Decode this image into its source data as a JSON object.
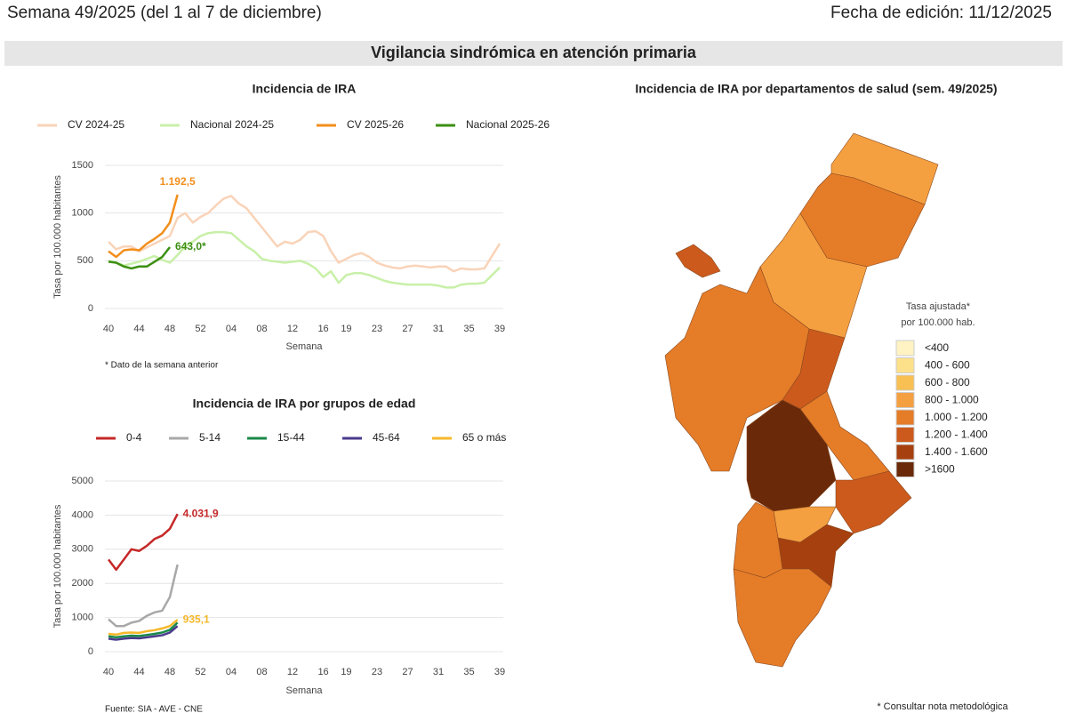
{
  "header": {
    "week": "Semana 49/2025 (del 1 al 7 de diciembre)",
    "edit_date": "Fecha de edición: 11/12/2025",
    "section_title": "Vigilancia sindrómica en atención primaria"
  },
  "chart_data": [
    {
      "type": "line",
      "title": "Incidencia de IRA",
      "x_label": "Semana",
      "y_label": "Tasa por 100.000 habitantes",
      "note": "* Dato de la semana anterior",
      "categories": [
        "40",
        null,
        null,
        null,
        "44",
        null,
        null,
        null,
        "48",
        null,
        null,
        null,
        "52",
        null,
        null,
        null,
        "04",
        null,
        null,
        null,
        "08",
        null,
        null,
        null,
        "12",
        null,
        null,
        null,
        "16",
        null,
        null,
        "19",
        null,
        null,
        null,
        "23",
        null,
        null,
        null,
        "27",
        null,
        null,
        null,
        "31",
        null,
        null,
        null,
        "35",
        null,
        null,
        null,
        "39"
      ],
      "ylim": [
        0,
        1500
      ],
      "yticks": [
        0,
        500,
        1000,
        1500
      ],
      "grid": true,
      "series": [
        {
          "name": "CV 2024-25",
          "color": "#f9d3b8",
          "values": [
            700,
            620,
            650,
            650,
            600,
            640,
            680,
            720,
            760,
            950,
            1000,
            900,
            960,
            1000,
            1080,
            1150,
            1180,
            1100,
            1050,
            950,
            850,
            750,
            650,
            700,
            680,
            720,
            800,
            810,
            760,
            600,
            480,
            520,
            560,
            580,
            540,
            480,
            450,
            430,
            420,
            440,
            450,
            440,
            430,
            440,
            440,
            390,
            420,
            410,
            410,
            420,
            550,
            680
          ]
        },
        {
          "name": "Nacional 2024-25",
          "color": "#c8f0a8",
          "values": [
            500,
            480,
            450,
            470,
            490,
            520,
            550,
            510,
            480,
            560,
            650,
            700,
            760,
            790,
            800,
            800,
            790,
            720,
            650,
            600,
            520,
            500,
            490,
            480,
            490,
            500,
            470,
            420,
            330,
            390,
            270,
            350,
            370,
            370,
            350,
            320,
            290,
            270,
            260,
            250,
            250,
            250,
            250,
            240,
            220,
            220,
            250,
            260,
            260,
            270,
            350,
            430
          ]
        },
        {
          "name": "CV 2025-26",
          "color": "#f28e1c",
          "values": [
            600,
            540,
            610,
            620,
            610,
            680,
            730,
            790,
            900,
            1192.5,
            null,
            null,
            null,
            null,
            null,
            null,
            null,
            null,
            null,
            null,
            null,
            null,
            null,
            null,
            null,
            null,
            null,
            null,
            null,
            null,
            null,
            null,
            null,
            null,
            null,
            null,
            null,
            null,
            null,
            null,
            null,
            null,
            null,
            null,
            null,
            null,
            null,
            null,
            null,
            null,
            null,
            null
          ],
          "value_labels": [
            null,
            null,
            null,
            null,
            null,
            null,
            null,
            null,
            null,
            "1.192,5"
          ]
        },
        {
          "name": "Nacional 2025-26",
          "color": "#3c8f12",
          "values": [
            490,
            480,
            440,
            420,
            440,
            440,
            490,
            540,
            643.0,
            null,
            null,
            null,
            null,
            null,
            null,
            null,
            null,
            null,
            null,
            null,
            null,
            null,
            null,
            null,
            null,
            null,
            null,
            null,
            null,
            null,
            null,
            null,
            null,
            null,
            null,
            null,
            null,
            null,
            null,
            null,
            null,
            null,
            null,
            null,
            null,
            null,
            null,
            null,
            null,
            null,
            null,
            null
          ],
          "value_labels": [
            null,
            null,
            null,
            null,
            null,
            null,
            null,
            null,
            "643,0*"
          ]
        }
      ]
    },
    {
      "type": "line",
      "title": "Incidencia de IRA por grupos de edad",
      "x_label": "Semana",
      "y_label": "Tasa por 100.000 habitantes",
      "note": "Fuente: SIA - AVE - CNE",
      "categories": [
        "40",
        null,
        null,
        null,
        "44",
        null,
        null,
        null,
        "48",
        null,
        null,
        null,
        "52",
        null,
        null,
        null,
        "04",
        null,
        null,
        null,
        "08",
        null,
        null,
        null,
        "12",
        null,
        null,
        null,
        "16",
        null,
        null,
        "19",
        null,
        null,
        null,
        "23",
        null,
        null,
        null,
        "27",
        null,
        null,
        null,
        "31",
        null,
        null,
        null,
        "35",
        null,
        null,
        null,
        "39"
      ],
      "ylim": [
        0,
        5000
      ],
      "yticks": [
        0,
        1000,
        2000,
        3000,
        4000,
        5000
      ],
      "grid": true,
      "series": [
        {
          "name": "0-4",
          "color": "#c62828",
          "values": [
            2700,
            2400,
            2700,
            3000,
            2950,
            3100,
            3300,
            3400,
            3600,
            4031.9,
            null,
            null,
            null,
            null,
            null,
            null,
            null,
            null,
            null,
            null,
            null,
            null,
            null,
            null,
            null,
            null,
            null,
            null,
            null,
            null,
            null,
            null,
            null,
            null,
            null,
            null,
            null,
            null,
            null,
            null,
            null,
            null,
            null,
            null,
            null,
            null,
            null,
            null,
            null,
            null,
            null,
            null
          ],
          "value_labels": [
            null,
            null,
            null,
            null,
            null,
            null,
            null,
            null,
            null,
            "4.031,9"
          ]
        },
        {
          "name": "5-14",
          "color": "#a8a8a8",
          "values": [
            950,
            750,
            750,
            850,
            900,
            1050,
            1150,
            1200,
            1600,
            2550,
            null,
            null,
            null,
            null,
            null,
            null,
            null,
            null,
            null,
            null,
            null,
            null,
            null,
            null,
            null,
            null,
            null,
            null,
            null,
            null,
            null,
            null,
            null,
            null,
            null,
            null,
            null,
            null,
            null,
            null,
            null,
            null,
            null,
            null,
            null,
            null,
            null,
            null,
            null,
            null,
            null,
            null
          ]
        },
        {
          "name": "15-44",
          "color": "#1a8a4a",
          "values": [
            450,
            420,
            450,
            470,
            460,
            490,
            520,
            560,
            640,
            850,
            null,
            null,
            null,
            null,
            null,
            null,
            null,
            null,
            null,
            null,
            null,
            null,
            null,
            null,
            null,
            null,
            null,
            null,
            null,
            null,
            null,
            null,
            null,
            null,
            null,
            null,
            null,
            null,
            null,
            null,
            null,
            null,
            null,
            null,
            null,
            null,
            null,
            null,
            null,
            null,
            null,
            null
          ]
        },
        {
          "name": "45-64",
          "color": "#4a3a8c",
          "values": [
            380,
            350,
            380,
            400,
            390,
            420,
            450,
            480,
            560,
            750,
            null,
            null,
            null,
            null,
            null,
            null,
            null,
            null,
            null,
            null,
            null,
            null,
            null,
            null,
            null,
            null,
            null,
            null,
            null,
            null,
            null,
            null,
            null,
            null,
            null,
            null,
            null,
            null,
            null,
            null,
            null,
            null,
            null,
            null,
            null,
            null,
            null,
            null,
            null,
            null,
            null,
            null
          ]
        },
        {
          "name": "65 o más",
          "color": "#f5b82a",
          "values": [
            520,
            500,
            550,
            560,
            550,
            600,
            630,
            680,
            750,
            935.1,
            null,
            null,
            null,
            null,
            null,
            null,
            null,
            null,
            null,
            null,
            null,
            null,
            null,
            null,
            null,
            null,
            null,
            null,
            null,
            null,
            null,
            null,
            null,
            null,
            null,
            null,
            null,
            null,
            null,
            null,
            null,
            null,
            null,
            null,
            null,
            null,
            null,
            null,
            null,
            null,
            null,
            null
          ],
          "value_labels": [
            null,
            null,
            null,
            null,
            null,
            null,
            null,
            null,
            null,
            "935,1"
          ]
        }
      ]
    }
  ],
  "map": {
    "title": "Incidencia de IRA por departamentos de salud (sem. 49/2025)",
    "legend_title": [
      "Tasa ajustada*",
      "por 100.000 hab."
    ],
    "note": "* Consultar nota metodológica",
    "legend": [
      {
        "label": "<400",
        "color": "#fff3c4"
      },
      {
        "label": "400 - 600",
        "color": "#fde08a"
      },
      {
        "label": "600 - 800",
        "color": "#f8bf52"
      },
      {
        "label": "800 - 1.000",
        "color": "#f5a040"
      },
      {
        "label": "1.000 - 1.200",
        "color": "#e57c28"
      },
      {
        "label": "1.200 - 1.400",
        "color": "#cc5a1c"
      },
      {
        "label": "1.400 - 1.600",
        "color": "#a6400f"
      },
      {
        "label": ">1600",
        "color": "#6a2a0a"
      }
    ]
  }
}
